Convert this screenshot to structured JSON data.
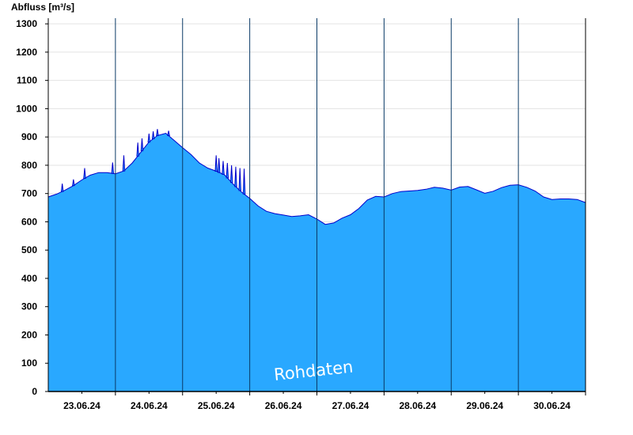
{
  "chart_data": {
    "type": "area",
    "ylabel": "Abfluss [m³/s]",
    "ylim": [
      0,
      1320
    ],
    "yticks": [
      0,
      100,
      200,
      300,
      400,
      500,
      600,
      700,
      800,
      900,
      1000,
      1100,
      1200,
      1300
    ],
    "xlim": [
      "22.06.24 12:00",
      "30.06.24 12:00"
    ],
    "day_boundaries": [
      "23.06.24 12:00",
      "24.06.24 12:00",
      "25.06.24 12:00",
      "26.06.24 12:00",
      "27.06.24 12:00",
      "28.06.24 12:00",
      "29.06.24 12:00",
      "30.06.24 12:00"
    ],
    "x_tick_labels": [
      "23.06.24",
      "24.06.24",
      "25.06.24",
      "26.06.24",
      "27.06.24",
      "28.06.24",
      "29.06.24",
      "30.06.24"
    ],
    "grid": "horizontal",
    "fill_color": "#29a8ff",
    "line_color": "#0000cc",
    "watermark": "Rohdaten",
    "series": [
      {
        "x": [
          "22.06.24 12:00",
          "22.06.24 15:00",
          "22.06.24 18:00",
          "22.06.24 21:00",
          "23.06.24 00:00",
          "23.06.24 03:00",
          "23.06.24 06:00",
          "23.06.24 09:00",
          "23.06.24 12:00",
          "23.06.24 15:00",
          "23.06.24 18:00",
          "23.06.24 21:00",
          "24.06.24 00:00",
          "24.06.24 03:00",
          "24.06.24 06:00",
          "24.06.24 09:00",
          "24.06.24 12:00",
          "24.06.24 15:00",
          "24.06.24 18:00",
          "24.06.24 21:00",
          "25.06.24 00:00",
          "25.06.24 03:00",
          "25.06.24 06:00",
          "25.06.24 09:00",
          "25.06.24 12:00",
          "25.06.24 15:00",
          "25.06.24 18:00",
          "25.06.24 21:00",
          "26.06.24 00:00",
          "26.06.24 03:00",
          "26.06.24 06:00",
          "26.06.24 09:00",
          "26.06.24 12:00",
          "26.06.24 15:00",
          "26.06.24 18:00",
          "26.06.24 21:00",
          "27.06.24 00:00",
          "27.06.24 03:00",
          "27.06.24 06:00",
          "27.06.24 09:00",
          "27.06.24 12:00",
          "27.06.24 15:00",
          "27.06.24 18:00",
          "27.06.24 21:00",
          "28.06.24 00:00",
          "28.06.24 03:00",
          "28.06.24 06:00",
          "28.06.24 09:00",
          "28.06.24 12:00",
          "28.06.24 15:00",
          "28.06.24 18:00",
          "28.06.24 21:00",
          "29.06.24 00:00",
          "29.06.24 03:00",
          "29.06.24 06:00",
          "29.06.24 09:00",
          "29.06.24 12:00",
          "29.06.24 15:00",
          "29.06.24 18:00",
          "29.06.24 21:00",
          "30.06.24 00:00",
          "30.06.24 03:00",
          "30.06.24 06:00",
          "30.06.24 09:00",
          "30.06.24 12:00"
        ],
        "values": [
          688,
          698,
          712,
          728,
          748,
          765,
          774,
          774,
          770,
          780,
          808,
          845,
          882,
          905,
          913,
          888,
          862,
          838,
          808,
          790,
          779,
          766,
          734,
          706,
          683,
          656,
          637,
          629,
          624,
          619,
          621,
          625,
          610,
          591,
          596,
          613,
          625,
          647,
          677,
          690,
          688,
          700,
          707,
          709,
          711,
          715,
          722,
          719,
          712,
          723,
          725,
          713,
          701,
          708,
          721,
          729,
          731,
          722,
          709,
          688,
          679,
          681,
          681,
          679,
          668
        ]
      }
    ],
    "spikes": [
      {
        "x": "22.06.24 17:00",
        "y": 735
      },
      {
        "x": "22.06.24 21:00",
        "y": 750
      },
      {
        "x": "23.06.24 01:00",
        "y": 790
      },
      {
        "x": "23.06.24 11:00",
        "y": 810
      },
      {
        "x": "23.06.24 15:00",
        "y": 835
      },
      {
        "x": "23.06.24 20:00",
        "y": 880
      },
      {
        "x": "23.06.24 21:30",
        "y": 895
      },
      {
        "x": "24.06.24 00:00",
        "y": 912
      },
      {
        "x": "24.06.24 01:30",
        "y": 920
      },
      {
        "x": "24.06.24 03:00",
        "y": 928
      },
      {
        "x": "24.06.24 07:00",
        "y": 922
      },
      {
        "x": "25.06.24 00:00",
        "y": 835
      },
      {
        "x": "25.06.24 01:00",
        "y": 825
      },
      {
        "x": "25.06.24 02:30",
        "y": 815
      },
      {
        "x": "25.06.24 04:00",
        "y": 808
      },
      {
        "x": "25.06.24 05:30",
        "y": 800
      },
      {
        "x": "25.06.24 07:00",
        "y": 795
      },
      {
        "x": "25.06.24 08:30",
        "y": 790
      },
      {
        "x": "25.06.24 10:00",
        "y": 788
      }
    ]
  }
}
